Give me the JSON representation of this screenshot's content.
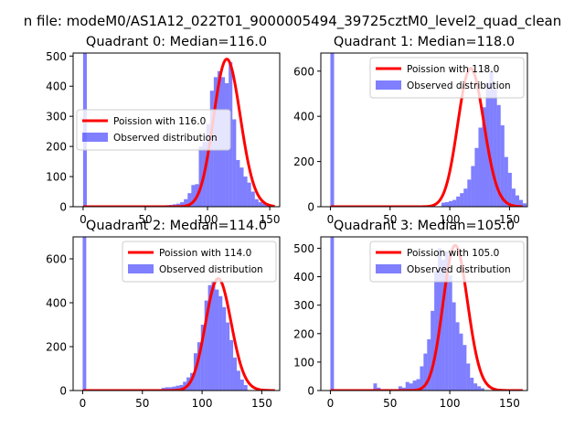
{
  "figure": {
    "suptitle": "n file: modeM0/AS1A12_022T01_9000005494_39725cztM0_level2_quad_clean"
  },
  "chart_data": [
    {
      "type": "bar",
      "title": "Quadrant 0: Median=116.0",
      "xlim": [
        -8,
        158
      ],
      "ylim": [
        0,
        510
      ],
      "xticks": [
        0,
        50,
        100,
        150
      ],
      "yticks": [
        0,
        100,
        200,
        300,
        400,
        500
      ],
      "legend_position": "center-left",
      "legend": {
        "line": "Poission with 116.0",
        "bars": "Observed distribution"
      },
      "median": 116.0,
      "bins_start": 0,
      "bin_width": 3,
      "values": [
        510,
        0,
        0,
        0,
        0,
        0,
        0,
        0,
        0,
        0,
        0,
        0,
        0,
        0,
        0,
        0,
        0,
        0,
        1,
        2,
        1,
        3,
        5,
        6,
        8,
        10,
        15,
        25,
        45,
        72,
        75,
        200,
        215,
        275,
        385,
        430,
        450,
        430,
        410,
        480,
        290,
        155,
        130,
        100,
        80,
        50,
        25,
        15,
        10,
        5
      ],
      "series": [
        {
          "name": "Poission with 116.0",
          "mean": 116,
          "color": "#ff0000"
        },
        {
          "name": "Observed distribution",
          "color": "#8080ff"
        }
      ]
    },
    {
      "type": "bar",
      "title": "Quadrant 1: Median=118.0",
      "xlim": [
        -8,
        165
      ],
      "ylim": [
        0,
        680
      ],
      "xticks": [
        0,
        50,
        100,
        150
      ],
      "yticks": [
        0,
        200,
        400,
        600
      ],
      "legend_position": "top-right",
      "legend": {
        "line": "Poission with 118.0",
        "bars": "Observed distribution"
      },
      "median": 118.0,
      "bins_start": 0,
      "bin_width": 3.1,
      "values": [
        680,
        0,
        0,
        0,
        0,
        0,
        0,
        0,
        0,
        0,
        0,
        0,
        0,
        0,
        0,
        0,
        0,
        0,
        0,
        0,
        0,
        0,
        0,
        0,
        0,
        0,
        0,
        0,
        0,
        0,
        18,
        20,
        25,
        30,
        45,
        60,
        80,
        120,
        180,
        260,
        350,
        440,
        550,
        600,
        520,
        450,
        360,
        220,
        150,
        80,
        50,
        30,
        15
      ],
      "series": [
        {
          "name": "Poission with 118.0",
          "mean": 118,
          "color": "#ff0000"
        },
        {
          "name": "Observed distribution",
          "color": "#8080ff"
        }
      ]
    },
    {
      "type": "bar",
      "title": "Quadrant 2: Median=114.0",
      "xlim": [
        -8,
        165
      ],
      "ylim": [
        0,
        700
      ],
      "xticks": [
        0,
        50,
        100,
        150
      ],
      "yticks": [
        0,
        200,
        400,
        600
      ],
      "legend_position": "top-right",
      "legend": {
        "line": "Poission with 114.0",
        "bars": "Observed distribution"
      },
      "median": 114.0,
      "bins_start": 0,
      "bin_width": 3,
      "values": [
        700,
        0,
        0,
        0,
        0,
        0,
        0,
        0,
        0,
        0,
        0,
        0,
        0,
        0,
        0,
        0,
        0,
        0,
        0,
        0,
        0,
        0,
        12,
        15,
        15,
        18,
        22,
        25,
        40,
        60,
        80,
        170,
        220,
        300,
        410,
        480,
        500,
        460,
        430,
        380,
        310,
        230,
        150,
        90,
        50,
        25
      ],
      "series": [
        {
          "name": "Poission with 114.0",
          "mean": 114,
          "color": "#ff0000"
        },
        {
          "name": "Observed distribution",
          "color": "#8080ff"
        }
      ]
    },
    {
      "type": "bar",
      "title": "Quadrant 3: Median=105.0",
      "xlim": [
        -8,
        165
      ],
      "ylim": [
        0,
        540
      ],
      "xticks": [
        0,
        50,
        100,
        150
      ],
      "yticks": [
        0,
        100,
        200,
        300,
        400,
        500
      ],
      "legend_position": "top-right",
      "legend": {
        "line": "Poission with 105.0",
        "bars": "Observed distribution"
      },
      "median": 105.0,
      "bins_start": 0,
      "bin_width": 3,
      "values": [
        540,
        0,
        0,
        0,
        0,
        0,
        0,
        0,
        0,
        0,
        0,
        3,
        25,
        10,
        0,
        5,
        0,
        3,
        0,
        15,
        10,
        30,
        25,
        35,
        40,
        85,
        130,
        180,
        280,
        420,
        500,
        460,
        490,
        405,
        310,
        240,
        200,
        160,
        95,
        45,
        25,
        15,
        8
      ],
      "series": [
        {
          "name": "Poission with 105.0",
          "mean": 105,
          "color": "#ff0000"
        },
        {
          "name": "Observed distribution",
          "color": "#8080ff"
        }
      ]
    }
  ]
}
